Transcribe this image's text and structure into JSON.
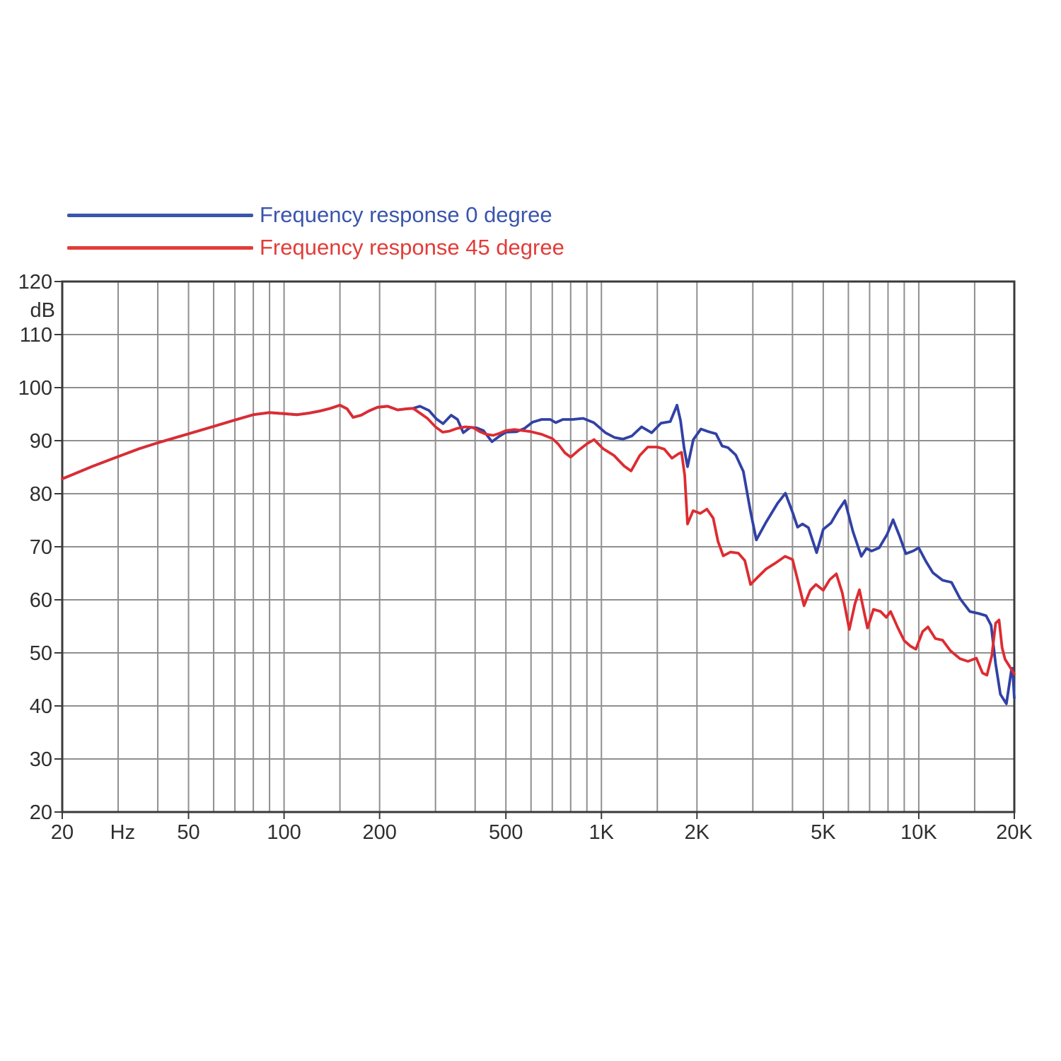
{
  "chart_data": {
    "type": "line",
    "title": "",
    "x_scale": "log",
    "x_range": [
      20,
      20000
    ],
    "y_range": [
      20,
      120
    ],
    "ylabel": "dB",
    "x_unit_label": "Hz",
    "grid_color": "#8f8f8f",
    "border_color": "#3a3a3a",
    "label_color": "#2e2e2e",
    "background": "#ffffff",
    "y_ticks": [
      120,
      110,
      100,
      90,
      80,
      70,
      60,
      50,
      40,
      30,
      20
    ],
    "x_gridlines": [
      20,
      30,
      40,
      50,
      60,
      70,
      80,
      90,
      100,
      150,
      200,
      300,
      400,
      500,
      600,
      700,
      800,
      900,
      1000,
      1500,
      2000,
      3000,
      4000,
      5000,
      6000,
      7000,
      8000,
      9000,
      10000,
      15000,
      20000
    ],
    "x_tick_labels": [
      {
        "freq": 20,
        "label": "20",
        "is_unit": false
      },
      {
        "freq": 31,
        "label": "Hz",
        "is_unit": true
      },
      {
        "freq": 50,
        "label": "50",
        "is_unit": false
      },
      {
        "freq": 100,
        "label": "100",
        "is_unit": false
      },
      {
        "freq": 200,
        "label": "200",
        "is_unit": false
      },
      {
        "freq": 500,
        "label": "500",
        "is_unit": false
      },
      {
        "freq": 1000,
        "label": "1K",
        "is_unit": false
      },
      {
        "freq": 2000,
        "label": "2K",
        "is_unit": false
      },
      {
        "freq": 5000,
        "label": "5K",
        "is_unit": false
      },
      {
        "freq": 10000,
        "label": "10K",
        "is_unit": false
      },
      {
        "freq": 20000,
        "label": "20K",
        "is_unit": false
      }
    ],
    "legend": [
      {
        "label": "Frequency response 0 degree",
        "color": "#3a55ad"
      },
      {
        "label": "Frequency response 45 degree",
        "color": "#e23c38"
      }
    ],
    "series": [
      {
        "name": "Frequency response 0 degree",
        "color": "#3141a5",
        "points": [
          [
            20,
            82.8
          ],
          [
            25,
            85.2
          ],
          [
            30,
            87.0
          ],
          [
            35,
            88.5
          ],
          [
            40,
            89.6
          ],
          [
            45,
            90.5
          ],
          [
            50,
            91.3
          ],
          [
            60,
            92.7
          ],
          [
            70,
            93.9
          ],
          [
            80,
            94.9
          ],
          [
            90,
            95.3
          ],
          [
            100,
            95.1
          ],
          [
            110,
            94.9
          ],
          [
            120,
            95.2
          ],
          [
            130,
            95.6
          ],
          [
            140,
            96.1
          ],
          [
            150,
            96.7
          ],
          [
            158,
            96.0
          ],
          [
            165,
            94.4
          ],
          [
            175,
            94.8
          ],
          [
            185,
            95.6
          ],
          [
            197,
            96.3
          ],
          [
            212,
            96.5
          ],
          [
            228,
            95.8
          ],
          [
            243,
            96.0
          ],
          [
            255,
            96.1
          ],
          [
            268,
            96.5
          ],
          [
            286,
            95.7
          ],
          [
            302,
            94.1
          ],
          [
            317,
            93.2
          ],
          [
            336,
            94.8
          ],
          [
            352,
            94.0
          ],
          [
            367,
            91.5
          ],
          [
            386,
            92.5
          ],
          [
            405,
            92.4
          ],
          [
            425,
            91.9
          ],
          [
            452,
            89.8
          ],
          [
            476,
            90.8
          ],
          [
            500,
            91.6
          ],
          [
            540,
            91.7
          ],
          [
            572,
            92.3
          ],
          [
            607,
            93.5
          ],
          [
            648,
            94.0
          ],
          [
            690,
            94.0
          ],
          [
            718,
            93.4
          ],
          [
            756,
            94.0
          ],
          [
            810,
            94.0
          ],
          [
            876,
            94.2
          ],
          [
            946,
            93.4
          ],
          [
            1030,
            91.5
          ],
          [
            1100,
            90.6
          ],
          [
            1168,
            90.3
          ],
          [
            1248,
            90.9
          ],
          [
            1338,
            92.6
          ],
          [
            1440,
            91.5
          ],
          [
            1540,
            93.3
          ],
          [
            1648,
            93.6
          ],
          [
            1730,
            96.7
          ],
          [
            1775,
            93.8
          ],
          [
            1822,
            88.6
          ],
          [
            1868,
            85.1
          ],
          [
            1948,
            90.2
          ],
          [
            2058,
            92.2
          ],
          [
            2175,
            91.7
          ],
          [
            2297,
            91.3
          ],
          [
            2400,
            89.0
          ],
          [
            2504,
            88.7
          ],
          [
            2650,
            87.3
          ],
          [
            2800,
            84.2
          ],
          [
            2950,
            76.6
          ],
          [
            3078,
            71.3
          ],
          [
            3300,
            74.6
          ],
          [
            3590,
            78.2
          ],
          [
            3800,
            80.1
          ],
          [
            3995,
            76.6
          ],
          [
            4150,
            73.7
          ],
          [
            4300,
            74.3
          ],
          [
            4490,
            73.6
          ],
          [
            4766,
            68.9
          ],
          [
            5000,
            73.3
          ],
          [
            5290,
            74.5
          ],
          [
            5580,
            76.9
          ],
          [
            5850,
            78.7
          ],
          [
            6200,
            72.9
          ],
          [
            6590,
            68.2
          ],
          [
            6840,
            69.7
          ],
          [
            7100,
            69.2
          ],
          [
            7500,
            69.8
          ],
          [
            7940,
            72.3
          ],
          [
            8300,
            75.1
          ],
          [
            8700,
            72.0
          ],
          [
            9100,
            68.7
          ],
          [
            9590,
            69.2
          ],
          [
            10000,
            69.8
          ],
          [
            10520,
            67.3
          ],
          [
            11080,
            65.1
          ],
          [
            11880,
            63.7
          ],
          [
            12680,
            63.3
          ],
          [
            13500,
            60.2
          ],
          [
            14480,
            57.8
          ],
          [
            15500,
            57.4
          ],
          [
            16300,
            57.0
          ],
          [
            16900,
            55.2
          ],
          [
            17460,
            48.0
          ],
          [
            18080,
            42.2
          ],
          [
            18880,
            40.4
          ],
          [
            19560,
            46.6
          ],
          [
            19750,
            47.1
          ],
          [
            20000,
            41.5
          ]
        ]
      },
      {
        "name": "Frequency response 45 degree",
        "color": "#dd2c31",
        "points": [
          [
            20,
            82.8
          ],
          [
            25,
            85.2
          ],
          [
            30,
            87.0
          ],
          [
            35,
            88.5
          ],
          [
            40,
            89.6
          ],
          [
            45,
            90.5
          ],
          [
            50,
            91.3
          ],
          [
            60,
            92.7
          ],
          [
            70,
            93.9
          ],
          [
            80,
            94.9
          ],
          [
            90,
            95.3
          ],
          [
            100,
            95.1
          ],
          [
            110,
            94.9
          ],
          [
            120,
            95.2
          ],
          [
            130,
            95.6
          ],
          [
            140,
            96.1
          ],
          [
            150,
            96.7
          ],
          [
            158,
            96.0
          ],
          [
            165,
            94.4
          ],
          [
            175,
            94.8
          ],
          [
            185,
            95.6
          ],
          [
            197,
            96.3
          ],
          [
            212,
            96.5
          ],
          [
            228,
            95.8
          ],
          [
            243,
            96.0
          ],
          [
            255,
            96.1
          ],
          [
            268,
            95.2
          ],
          [
            283,
            94.2
          ],
          [
            300,
            92.6
          ],
          [
            316,
            91.6
          ],
          [
            332,
            91.8
          ],
          [
            350,
            92.3
          ],
          [
            372,
            92.6
          ],
          [
            393,
            92.5
          ],
          [
            414,
            91.7
          ],
          [
            434,
            91.2
          ],
          [
            456,
            91.0
          ],
          [
            478,
            91.4
          ],
          [
            500,
            91.9
          ],
          [
            532,
            92.1
          ],
          [
            565,
            91.9
          ],
          [
            600,
            91.7
          ],
          [
            648,
            91.2
          ],
          [
            700,
            90.4
          ],
          [
            730,
            89.4
          ],
          [
            768,
            87.7
          ],
          [
            800,
            86.9
          ],
          [
            848,
            88.2
          ],
          [
            900,
            89.4
          ],
          [
            948,
            90.2
          ],
          [
            1012,
            88.5
          ],
          [
            1096,
            87.2
          ],
          [
            1180,
            85.2
          ],
          [
            1240,
            84.3
          ],
          [
            1320,
            87.2
          ],
          [
            1400,
            88.8
          ],
          [
            1500,
            88.8
          ],
          [
            1578,
            88.4
          ],
          [
            1668,
            86.7
          ],
          [
            1745,
            87.5
          ],
          [
            1788,
            87.8
          ],
          [
            1830,
            83.5
          ],
          [
            1868,
            74.3
          ],
          [
            1945,
            76.8
          ],
          [
            2050,
            76.3
          ],
          [
            2150,
            77.1
          ],
          [
            2250,
            75.4
          ],
          [
            2330,
            71.0
          ],
          [
            2420,
            68.3
          ],
          [
            2550,
            69.0
          ],
          [
            2700,
            68.8
          ],
          [
            2830,
            67.4
          ],
          [
            2950,
            62.9
          ],
          [
            3100,
            64.2
          ],
          [
            3300,
            65.8
          ],
          [
            3550,
            67.0
          ],
          [
            3790,
            68.2
          ],
          [
            4000,
            67.6
          ],
          [
            4150,
            63.8
          ],
          [
            4350,
            58.9
          ],
          [
            4550,
            61.8
          ],
          [
            4740,
            62.9
          ],
          [
            5000,
            61.8
          ],
          [
            5240,
            63.8
          ],
          [
            5500,
            64.9
          ],
          [
            5740,
            61.3
          ],
          [
            6040,
            54.4
          ],
          [
            6290,
            59.2
          ],
          [
            6500,
            61.9
          ],
          [
            6890,
            54.7
          ],
          [
            7200,
            58.2
          ],
          [
            7580,
            57.8
          ],
          [
            7900,
            56.7
          ],
          [
            8150,
            57.8
          ],
          [
            8580,
            54.8
          ],
          [
            9000,
            52.3
          ],
          [
            9400,
            51.3
          ],
          [
            9790,
            50.7
          ],
          [
            10280,
            54.0
          ],
          [
            10690,
            54.9
          ],
          [
            11280,
            52.7
          ],
          [
            11880,
            52.4
          ],
          [
            12580,
            50.4
          ],
          [
            13480,
            48.9
          ],
          [
            14280,
            48.4
          ],
          [
            15180,
            49.0
          ],
          [
            15880,
            46.2
          ],
          [
            16400,
            45.8
          ],
          [
            16990,
            49.5
          ],
          [
            17470,
            55.6
          ],
          [
            17900,
            56.2
          ],
          [
            18300,
            51.0
          ],
          [
            18700,
            48.8
          ],
          [
            19300,
            47.5
          ],
          [
            20000,
            46.0
          ]
        ]
      }
    ]
  }
}
